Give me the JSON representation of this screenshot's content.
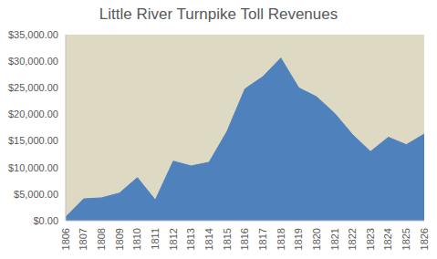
{
  "chart_data": {
    "type": "area",
    "title": "Little River Turnpike Toll Revenues",
    "categories": [
      "1806",
      "1807",
      "1808",
      "1809",
      "1810",
      "1811",
      "1812",
      "1813",
      "1814",
      "1815",
      "1816",
      "1817",
      "1818",
      "1819",
      "1820",
      "1821",
      "1822",
      "1823",
      "1824",
      "1825",
      "1826"
    ],
    "values": [
      700,
      4100,
      4300,
      5200,
      8100,
      3900,
      11200,
      10300,
      11000,
      16800,
      24800,
      27100,
      30600,
      25000,
      23300,
      20200,
      16200,
      13000,
      15700,
      14300,
      16300
    ],
    "color": "#4F81BD",
    "ylim": [
      0,
      35000
    ],
    "yticks": [
      {
        "value": 0,
        "label": "$0.00"
      },
      {
        "value": 5000,
        "label": "$5,000.00"
      },
      {
        "value": 10000,
        "label": "$10,000.00"
      },
      {
        "value": 15000,
        "label": "$15,000.00"
      },
      {
        "value": 20000,
        "label": "$20,000.00"
      },
      {
        "value": 25000,
        "label": "$25,000.00"
      },
      {
        "value": 30000,
        "label": "$30,000.00"
      },
      {
        "value": 35000,
        "label": "$35,000.00"
      }
    ],
    "grid": false
  }
}
